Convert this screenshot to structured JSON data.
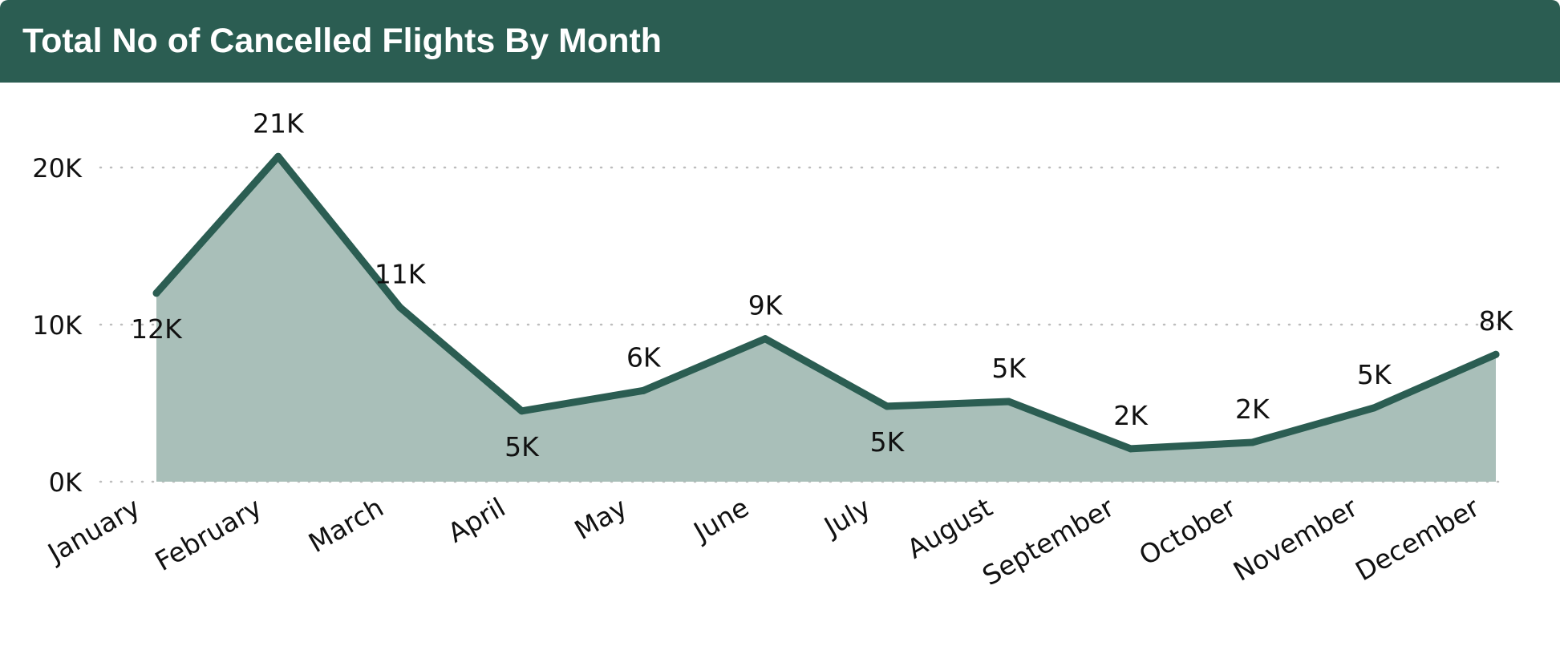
{
  "title": "Total No of Cancelled Flights By Month",
  "colors": {
    "header": "#2b5d52",
    "line": "#2b5d52",
    "area": "#a9bfb9",
    "grid": "#bdbdbd"
  },
  "chart_data": {
    "type": "area",
    "title": "Total No of Cancelled Flights By Month",
    "xlabel": "",
    "ylabel": "",
    "categories": [
      "January",
      "February",
      "March",
      "April",
      "May",
      "June",
      "July",
      "August",
      "September",
      "October",
      "November",
      "December"
    ],
    "values": [
      12000,
      20700,
      11100,
      4500,
      5800,
      9100,
      4800,
      5100,
      2100,
      2500,
      4700,
      8100
    ],
    "data_labels": [
      "12K",
      "21K",
      "11K",
      "5K",
      "6K",
      "9K",
      "5K",
      "5K",
      "2K",
      "2K",
      "5K",
      "8K"
    ],
    "label_positions": [
      "below",
      "above",
      "above",
      "below",
      "above",
      "above",
      "below",
      "above",
      "above",
      "above",
      "above",
      "above"
    ],
    "y_ticks": [
      0,
      10000,
      20000
    ],
    "y_tick_labels": [
      "0K",
      "10K",
      "20K"
    ],
    "ylim": [
      0,
      21500
    ],
    "grid": true,
    "legend": "none"
  }
}
